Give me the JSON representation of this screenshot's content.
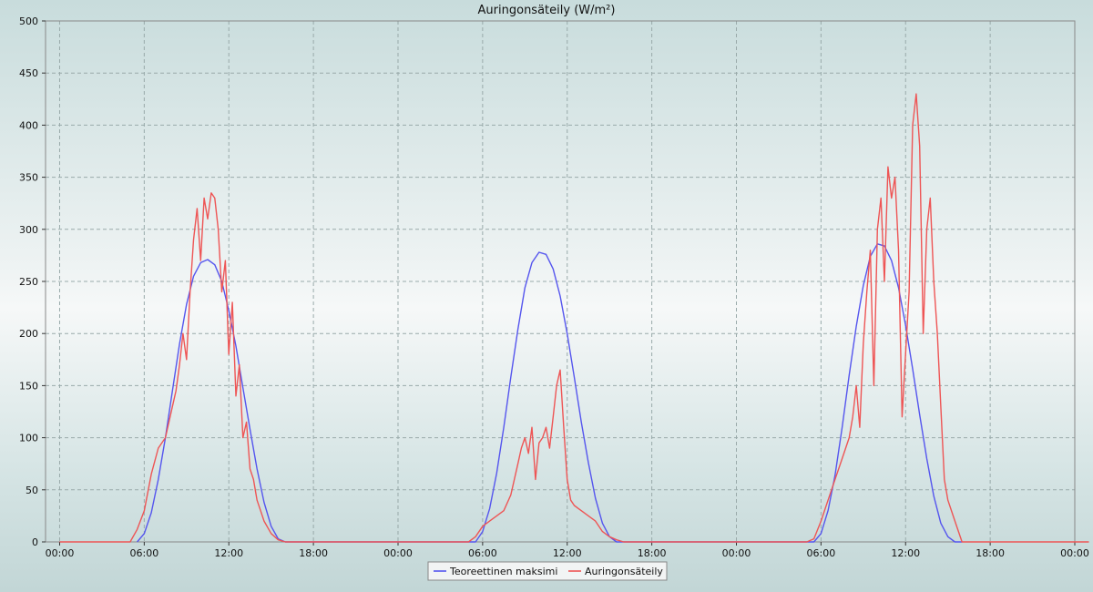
{
  "chart_data": {
    "type": "line",
    "title": "Auringonsäteily (W/m²)",
    "xlabel": "",
    "ylabel": "",
    "x_tick_labels": [
      "00:00",
      "06:00",
      "12:00",
      "18:00",
      "00:00",
      "06:00",
      "12:00",
      "18:00",
      "00:00",
      "06:00",
      "12:00",
      "18:00",
      "00:00"
    ],
    "x_unit": "hours since first 00:00 tick",
    "xlim": [
      0,
      73
    ],
    "ylim": [
      0,
      500
    ],
    "y_ticks": [
      0,
      50,
      100,
      150,
      200,
      250,
      300,
      350,
      400,
      450,
      500
    ],
    "grid": true,
    "legend_position": "bottom-center",
    "series": [
      {
        "name": "Teoreettinen maksimi",
        "color": "#5555ee",
        "x": [
          5.5,
          6,
          6.5,
          7,
          7.5,
          8,
          8.5,
          9,
          9.5,
          10,
          10.5,
          11,
          11.5,
          12,
          12.5,
          13,
          13.5,
          14,
          14.5,
          15,
          15.5,
          16,
          29.5,
          30,
          30.5,
          31,
          31.5,
          32,
          32.5,
          33,
          33.5,
          34,
          34.5,
          35,
          35.5,
          36,
          36.5,
          37,
          37.5,
          38,
          38.5,
          39,
          39.5,
          40,
          53.5,
          54,
          54.5,
          55,
          55.5,
          56,
          56.5,
          57,
          57.5,
          58,
          58.5,
          59,
          59.5,
          60,
          60.5,
          61,
          61.5,
          62,
          62.5,
          63,
          63.5,
          64
        ],
        "y": [
          0,
          8,
          28,
          60,
          100,
          145,
          190,
          228,
          255,
          268,
          271,
          266,
          250,
          222,
          188,
          148,
          108,
          70,
          38,
          15,
          3,
          0,
          0,
          10,
          32,
          66,
          110,
          158,
          204,
          244,
          268,
          278,
          276,
          262,
          236,
          200,
          158,
          115,
          76,
          42,
          18,
          5,
          0,
          0,
          0,
          8,
          30,
          64,
          110,
          160,
          207,
          246,
          274,
          286,
          284,
          270,
          244,
          208,
          166,
          122,
          80,
          44,
          18,
          5,
          0,
          0
        ]
      },
      {
        "name": "Auringonsäteily",
        "color": "#ee5555",
        "x": [
          0,
          5,
          5.5,
          6,
          6.5,
          7,
          7.5,
          8,
          8.25,
          8.5,
          8.75,
          9,
          9.25,
          9.5,
          9.75,
          10,
          10.25,
          10.5,
          10.75,
          11,
          11.25,
          11.5,
          11.75,
          12,
          12.25,
          12.5,
          12.75,
          13,
          13.25,
          13.5,
          13.75,
          14,
          14.25,
          14.5,
          15,
          15.5,
          16,
          29,
          29.5,
          30,
          30.5,
          31,
          31.5,
          32,
          32.25,
          32.5,
          32.75,
          33,
          33.25,
          33.5,
          33.75,
          34,
          34.25,
          34.5,
          34.75,
          35,
          35.25,
          35.5,
          35.75,
          36,
          36.25,
          36.5,
          37,
          37.5,
          38,
          38.5,
          39,
          39.5,
          40,
          53,
          53.5,
          54,
          54.5,
          55,
          55.5,
          56,
          56.25,
          56.5,
          56.75,
          57,
          57.25,
          57.5,
          57.75,
          58,
          58.25,
          58.5,
          58.75,
          59,
          59.25,
          59.5,
          59.75,
          60,
          60.25,
          60.5,
          60.75,
          61,
          61.25,
          61.5,
          61.75,
          62,
          62.25,
          62.5,
          62.75,
          63,
          63.5,
          64,
          73
        ],
        "y": [
          0,
          0,
          12,
          30,
          65,
          90,
          100,
          130,
          145,
          170,
          200,
          175,
          240,
          290,
          320,
          270,
          330,
          310,
          335,
          330,
          300,
          240,
          270,
          180,
          230,
          140,
          170,
          100,
          115,
          70,
          60,
          40,
          30,
          20,
          8,
          2,
          0,
          0,
          5,
          15,
          20,
          25,
          30,
          45,
          60,
          75,
          90,
          100,
          85,
          110,
          60,
          95,
          100,
          110,
          90,
          120,
          150,
          165,
          110,
          60,
          40,
          35,
          30,
          25,
          20,
          10,
          5,
          2,
          0,
          0,
          3,
          20,
          40,
          60,
          80,
          100,
          120,
          150,
          110,
          190,
          240,
          280,
          150,
          300,
          330,
          250,
          360,
          330,
          350,
          280,
          120,
          180,
          240,
          400,
          430,
          380,
          200,
          300,
          330,
          250,
          200,
          130,
          60,
          40,
          20,
          0,
          0
        ]
      }
    ]
  }
}
